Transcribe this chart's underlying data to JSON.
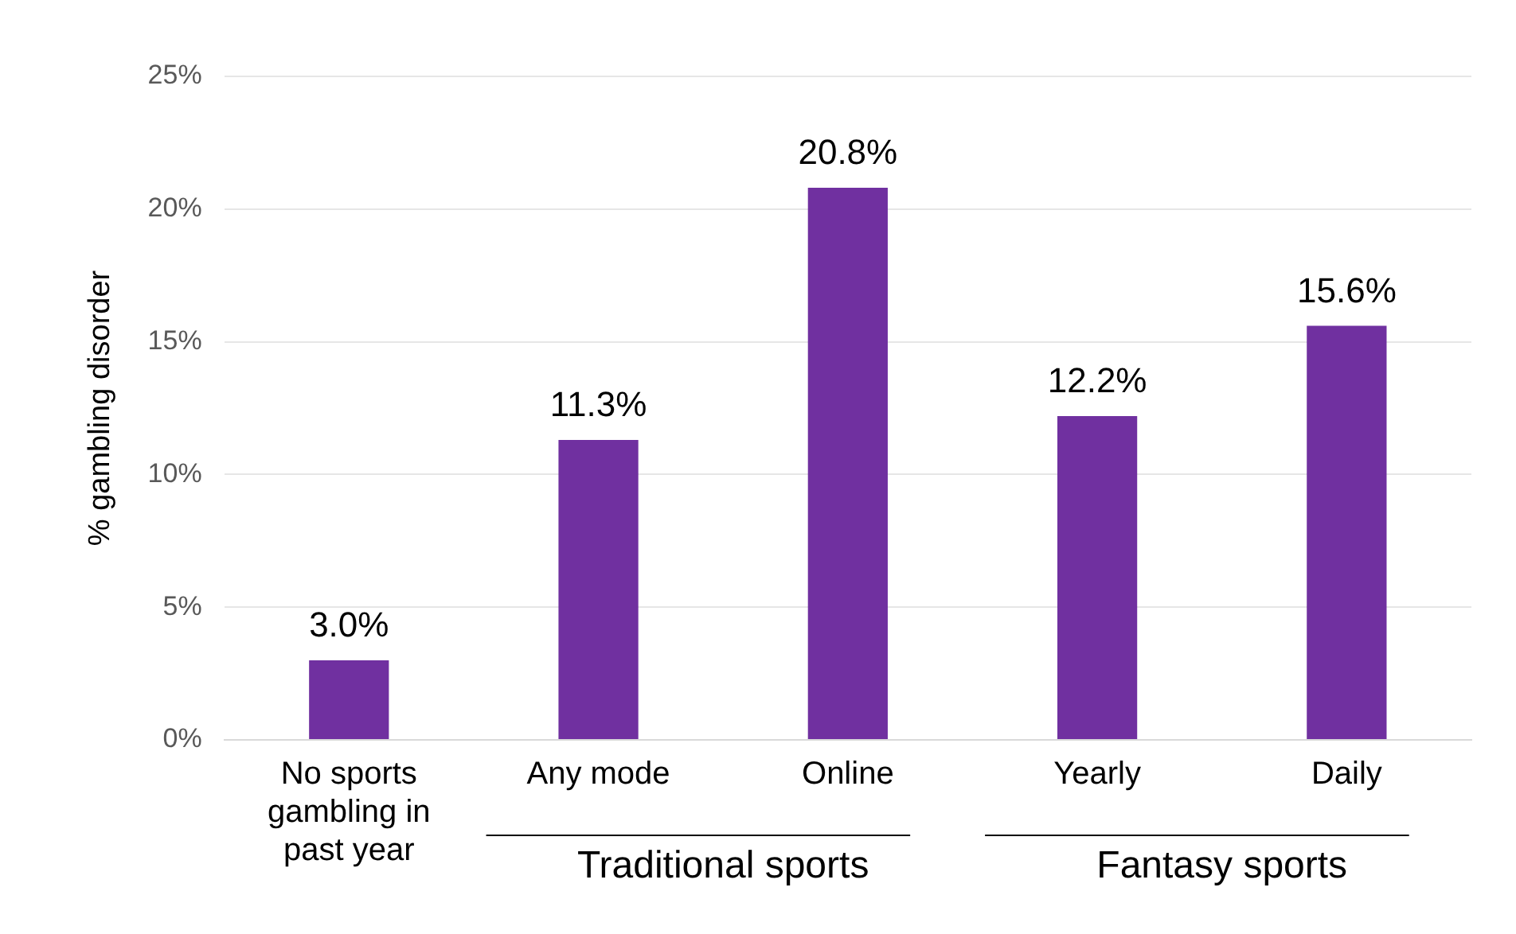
{
  "chart_data": {
    "type": "bar",
    "ylabel": "% gambling disorder",
    "categories": [
      "No sports gambling in past year",
      "Any mode",
      "Online",
      "Yearly",
      "Daily"
    ],
    "values": [
      3.0,
      11.3,
      20.8,
      12.2,
      15.6
    ],
    "value_labels": [
      "3.0%",
      "11.3%",
      "20.8%",
      "12.2%",
      "15.6%"
    ],
    "color": "#7030a0",
    "ylim": [
      0,
      25
    ],
    "yticks": [
      {
        "value": 0,
        "label": "0%"
      },
      {
        "value": 5,
        "label": "5%"
      },
      {
        "value": 10,
        "label": "10%"
      },
      {
        "value": 15,
        "label": "15%"
      },
      {
        "value": 20,
        "label": "20%"
      },
      {
        "value": 25,
        "label": "25%"
      }
    ],
    "grid": "y",
    "annotations": [
      "Traditional sports",
      "Fantasy sports"
    ]
  }
}
